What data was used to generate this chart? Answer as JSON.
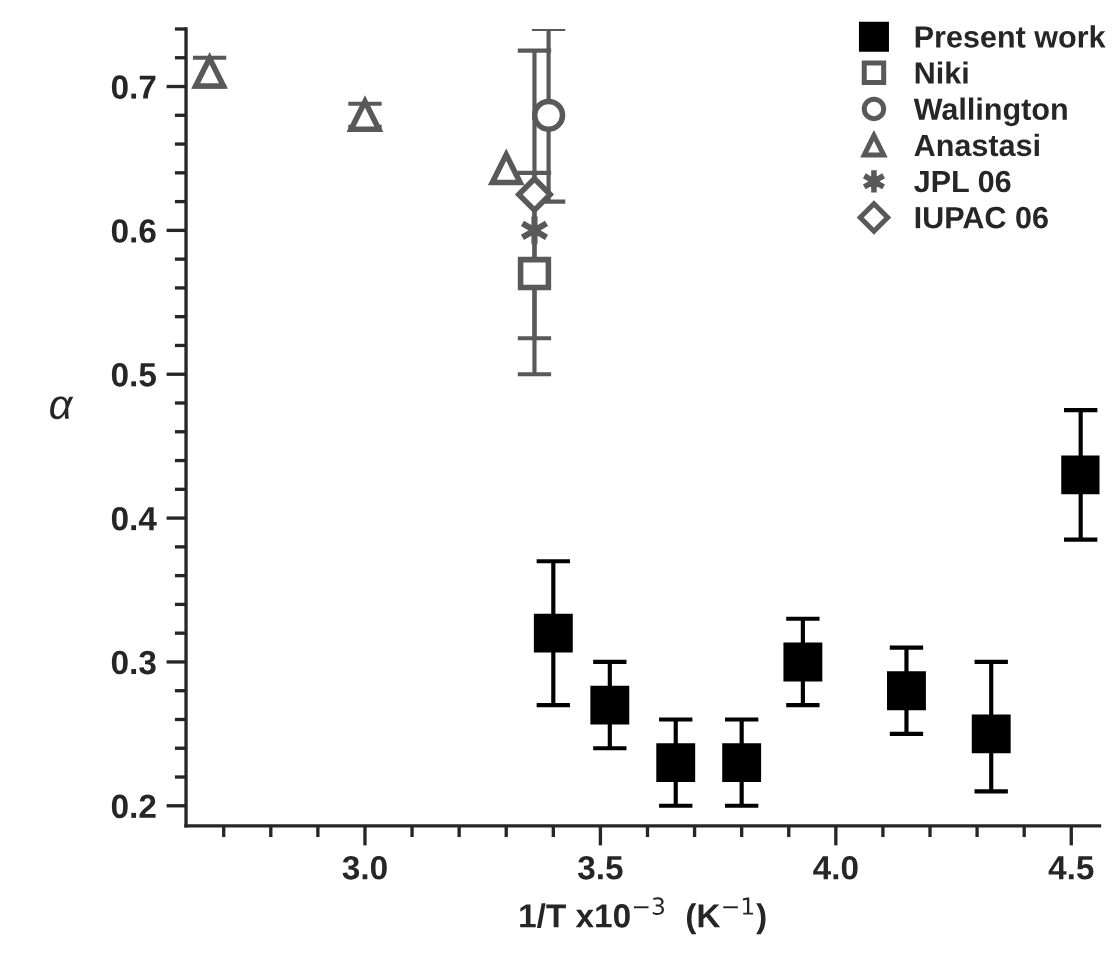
{
  "chart_data": {
    "type": "scatter",
    "xlabel": "1/T x10$^{−3}$  (K$^{−1}$)",
    "ylabel": "α",
    "xlim": [
      2.62,
      4.56
    ],
    "ylim": [
      0.186,
      0.74
    ],
    "xticks": [
      {
        "value": 3,
        "label": "3.0"
      },
      3.5,
      {
        "value": 4,
        "label": "4.0"
      },
      4.5
    ],
    "yticks": [
      0.2,
      0.3,
      0.4,
      0.5,
      0.6,
      0.7
    ],
    "legend": "top right",
    "grid": false,
    "series": [
      {
        "name": "Present work",
        "color": "#000000",
        "marker": "square",
        "x": [
          3.4,
          3.52,
          3.66,
          3.8,
          3.93,
          4.15,
          4.33,
          4.52
        ],
        "values": [
          0.32,
          0.27,
          0.23,
          0.23,
          0.3,
          0.28,
          0.25,
          0.43
        ],
        "errors": [
          [
            0.27,
            0.37
          ],
          [
            0.24,
            0.3
          ],
          [
            0.2,
            0.26
          ],
          [
            0.2,
            0.26
          ],
          [
            0.27,
            0.33
          ],
          [
            0.25,
            0.31
          ],
          [
            0.21,
            0.3
          ],
          [
            0.385,
            0.475
          ]
        ]
      },
      {
        "name": "Niki",
        "color": "#595959",
        "marker": "square",
        "x": [
          3.36
        ],
        "values": [
          0.57
        ],
        "errors": [
          [
            0.5,
            0.64
          ]
        ]
      },
      {
        "name": "Wallington",
        "color": "#595959",
        "marker": "circle",
        "x": [
          3.39
        ],
        "values": [
          0.68
        ],
        "errors": [
          [
            0.62,
            0.74
          ]
        ]
      },
      {
        "name": "Anastasi",
        "color": "#595959",
        "marker": "triangle",
        "x": [
          2.67,
          3.0,
          3.3
        ],
        "values": [
          0.71,
          0.68,
          0.643
        ],
        "errors": [
          [
            0.7,
            0.72
          ],
          [
            0.672,
            0.688
          ],
          null
        ]
      },
      {
        "name": "JPL 06",
        "color": "#595959",
        "marker": "cross",
        "x": [
          3.36
        ],
        "values": [
          0.6
        ]
      },
      {
        "name": "IUPAC 06",
        "color": "#595959",
        "marker": "diamond",
        "x": [
          3.36
        ],
        "values": [
          0.625
        ],
        "errors": [
          [
            0.525,
            0.725
          ]
        ]
      }
    ]
  }
}
